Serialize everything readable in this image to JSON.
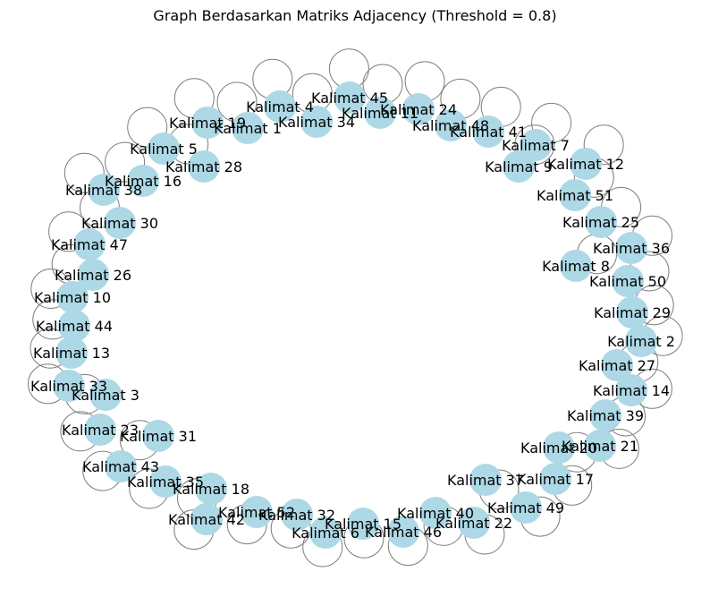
{
  "title": "Graph Berdasarkan Matriks Adjacency (Threshold = 0.8)",
  "style": {
    "node_color": "#add8e6",
    "edge_color": "#808080",
    "label_color": "#000000",
    "background": "#ffffff"
  },
  "nodes": [
    {
      "label": "Kalimat 1"
    },
    {
      "label": "Kalimat 2"
    },
    {
      "label": "Kalimat 3"
    },
    {
      "label": "Kalimat 4"
    },
    {
      "label": "Kalimat 5"
    },
    {
      "label": "Kalimat 6"
    },
    {
      "label": "Kalimat 7"
    },
    {
      "label": "Kalimat 8"
    },
    {
      "label": "Kalimat 9"
    },
    {
      "label": "Kalimat 10"
    },
    {
      "label": "Kalimat 11"
    },
    {
      "label": "Kalimat 12"
    },
    {
      "label": "Kalimat 13"
    },
    {
      "label": "Kalimat 14"
    },
    {
      "label": "Kalimat 15"
    },
    {
      "label": "Kalimat 16"
    },
    {
      "label": "Kalimat 17"
    },
    {
      "label": "Kalimat 18"
    },
    {
      "label": "Kalimat 19"
    },
    {
      "label": "Kalimat 20"
    },
    {
      "label": "Kalimat 21"
    },
    {
      "label": "Kalimat 22"
    },
    {
      "label": "Kalimat 23"
    },
    {
      "label": "Kalimat 24"
    },
    {
      "label": "Kalimat 25"
    },
    {
      "label": "Kalimat 26"
    },
    {
      "label": "Kalimat 27"
    },
    {
      "label": "Kalimat 28"
    },
    {
      "label": "Kalimat 29"
    },
    {
      "label": "Kalimat 30"
    },
    {
      "label": "Kalimat 31"
    },
    {
      "label": "Kalimat 32"
    },
    {
      "label": "Kalimat 33"
    },
    {
      "label": "Kalimat 34"
    },
    {
      "label": "Kalimat 35"
    },
    {
      "label": "Kalimat 36"
    },
    {
      "label": "Kalimat 37"
    },
    {
      "label": "Kalimat 38"
    },
    {
      "label": "Kalimat 39"
    },
    {
      "label": "Kalimat 40"
    },
    {
      "label": "Kalimat 41"
    },
    {
      "label": "Kalimat 42"
    },
    {
      "label": "Kalimat 43"
    },
    {
      "label": "Kalimat 44"
    },
    {
      "label": "Kalimat 45"
    },
    {
      "label": "Kalimat 46"
    },
    {
      "label": "Kalimat 47"
    },
    {
      "label": "Kalimat 48"
    },
    {
      "label": "Kalimat 49"
    },
    {
      "label": "Kalimat 50"
    },
    {
      "label": "Kalimat 51"
    },
    {
      "label": "Kalimat 52"
    }
  ],
  "edges": "self-loop on every node"
}
